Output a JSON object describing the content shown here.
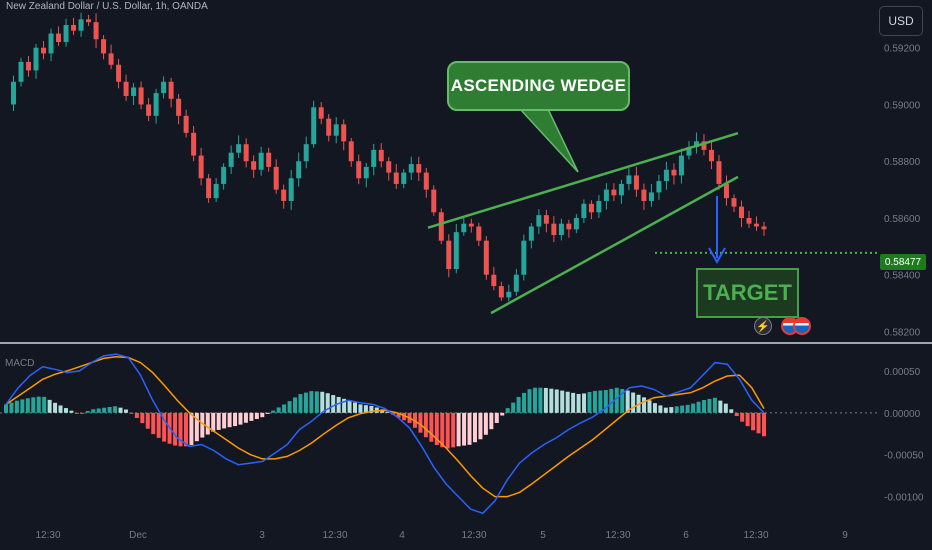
{
  "header": {
    "title": "New Zealand Dollar / U.S. Dollar, 1h, OANDA",
    "currency_button": "USD"
  },
  "annotations": {
    "pattern_label": "ASCENDING WEDGE",
    "target_label": "TARGET",
    "target_price": "0.58477",
    "bolt_icon": "lightning-icon",
    "flag_icon": "us-flag-icon"
  },
  "macd_panel": {
    "label": "MACD"
  },
  "colors": {
    "background": "#131722",
    "bull": "#26a69a",
    "bear": "#ef5350",
    "wedge": "#4caf50",
    "macd_line": "#2962ff",
    "signal_line": "#ff9800",
    "target_line": "#4caf50",
    "arrow": "#2962ff"
  },
  "chart_data": [
    {
      "type": "candlestick",
      "title": "New Zealand Dollar / U.S. Dollar, 1h, OANDA",
      "y_ticks": [
        "0.59200",
        "0.59000",
        "0.58800",
        "0.58600",
        "0.58400",
        "0.58200"
      ],
      "ylim": [
        0.5817,
        0.5934
      ],
      "x_ticks": [
        "12:30",
        "Dec",
        "3",
        "12:30",
        "4",
        "12:30",
        "5",
        "12:30",
        "6",
        "12:30",
        "9"
      ],
      "close_path": [
        0.59,
        0.5908,
        0.5915,
        0.5912,
        0.592,
        0.5918,
        0.5925,
        0.5922,
        0.5928,
        0.5926,
        0.593,
        0.5929,
        0.5923,
        0.5918,
        0.5914,
        0.5908,
        0.5903,
        0.5906,
        0.59,
        0.5896,
        0.5904,
        0.5908,
        0.5902,
        0.5896,
        0.589,
        0.5882,
        0.5874,
        0.5867,
        0.5872,
        0.5878,
        0.5883,
        0.5886,
        0.588,
        0.5877,
        0.5883,
        0.5878,
        0.587,
        0.5866,
        0.5874,
        0.588,
        0.5886,
        0.5899,
        0.5895,
        0.5889,
        0.5893,
        0.5887,
        0.588,
        0.5874,
        0.5878,
        0.5884,
        0.588,
        0.5876,
        0.5872,
        0.5876,
        0.5879,
        0.5876,
        0.587,
        0.5862,
        0.5852,
        0.5842,
        0.5855,
        0.5858,
        0.5857,
        0.5852,
        0.584,
        0.5836,
        0.5832,
        0.5834,
        0.584,
        0.5852,
        0.5857,
        0.5861,
        0.5858,
        0.5854,
        0.5858,
        0.5856,
        0.586,
        0.5865,
        0.5862,
        0.5866,
        0.587,
        0.5868,
        0.5872,
        0.5875,
        0.587,
        0.5866,
        0.5869,
        0.5873,
        0.5877,
        0.5875,
        0.5882,
        0.5885,
        0.5887,
        0.5884,
        0.588,
        0.5872,
        0.5867,
        0.5864,
        0.586,
        0.5858,
        0.5857,
        0.5856
      ],
      "target_level": 0.58477,
      "wedge_upper": {
        "start": 0.5858,
        "end": 0.5892
      },
      "wedge_lower": {
        "start": 0.583,
        "end": 0.5878
      }
    },
    {
      "type": "macd",
      "title": "MACD",
      "y_ticks": [
        "0.00050",
        "0.00000",
        "-0.00050",
        "-0.00100"
      ],
      "ylim": [
        -0.00122,
        0.00075
      ],
      "macd": [
        0.0001,
        0.0003,
        0.00045,
        0.00055,
        0.00052,
        0.00048,
        0.0005,
        0.0006,
        0.00068,
        0.0007,
        0.00066,
        0.00045,
        0.00015,
        -0.0001,
        -0.0003,
        -0.0004,
        -0.00038,
        -0.00045,
        -0.00055,
        -0.00062,
        -0.0006,
        -0.00058,
        -0.00048,
        -0.00038,
        -0.0002,
        -0.0001,
        2e-05,
        0.0001,
        0.00015,
        0.00012,
        0.0001,
        5e-05,
        -5e-05,
        -0.00018,
        -0.0004,
        -0.00065,
        -0.00085,
        -0.001,
        -0.00115,
        -0.0012,
        -0.00105,
        -0.0008,
        -0.0006,
        -0.00048,
        -0.00038,
        -0.0003,
        -0.0002,
        -0.00012,
        -5e-05,
        5e-05,
        0.00018,
        0.0003,
        0.00032,
        0.00028,
        0.0002,
        0.00025,
        0.0003,
        0.00045,
        0.0006,
        0.00058,
        0.0004,
        0.00015,
        0.0
      ],
      "signal": [
        0.0001,
        0.0002,
        0.0003,
        0.0004,
        0.00046,
        0.0005,
        0.00055,
        0.0006,
        0.00065,
        0.00067,
        0.00066,
        0.0006,
        0.00048,
        0.00032,
        0.00015,
        0.0,
        -0.00012,
        -0.00022,
        -0.00032,
        -0.00042,
        -0.0005,
        -0.00055,
        -0.00055,
        -0.00052,
        -0.00045,
        -0.00036,
        -0.00025,
        -0.00015,
        -6e-05,
        -1e-05,
        2e-05,
        3e-05,
        0.0,
        -6e-05,
        -0.00015,
        -0.00028,
        -0.00042,
        -0.00058,
        -0.00075,
        -0.0009,
        -0.001,
        -0.001,
        -0.00095,
        -0.00085,
        -0.00074,
        -0.00063,
        -0.00052,
        -0.00042,
        -0.00032,
        -0.0002,
        -8e-05,
        4e-05,
        0.00012,
        0.00018,
        0.0002,
        0.00022,
        0.00024,
        0.0003,
        0.00038,
        0.00044,
        0.00045,
        0.0003,
        5e-05
      ],
      "histogram": [
        0.0001,
        0.00015,
        0.00018,
        0.0002,
        0.00012,
        5e-05,
        -2e-05,
        4e-05,
        6e-05,
        8e-05,
        3e-05,
        -0.0001,
        -0.00025,
        -0.00035,
        -0.0004,
        -0.0004,
        -0.0003,
        -0.00022,
        -0.00018,
        -0.00015,
        -0.0001,
        -5e-05,
        4e-05,
        0.00012,
        0.00022,
        0.00026,
        0.00025,
        0.0002,
        0.00015,
        0.0001,
        8e-05,
        3e-05,
        -5e-05,
        -0.00012,
        -0.00025,
        -0.00037,
        -0.00043,
        -0.0004,
        -0.00038,
        -0.0003,
        -0.00015,
        5e-05,
        0.0002,
        0.0003,
        0.0003,
        0.00028,
        0.00025,
        0.00022,
        0.00026,
        0.00027,
        0.0003,
        0.00026,
        0.0002,
        0.00012,
        6e-05,
        8e-05,
        0.0001,
        0.00015,
        0.00018,
        0.0001,
        -8e-05,
        -0.0002,
        -0.00028
      ]
    }
  ]
}
